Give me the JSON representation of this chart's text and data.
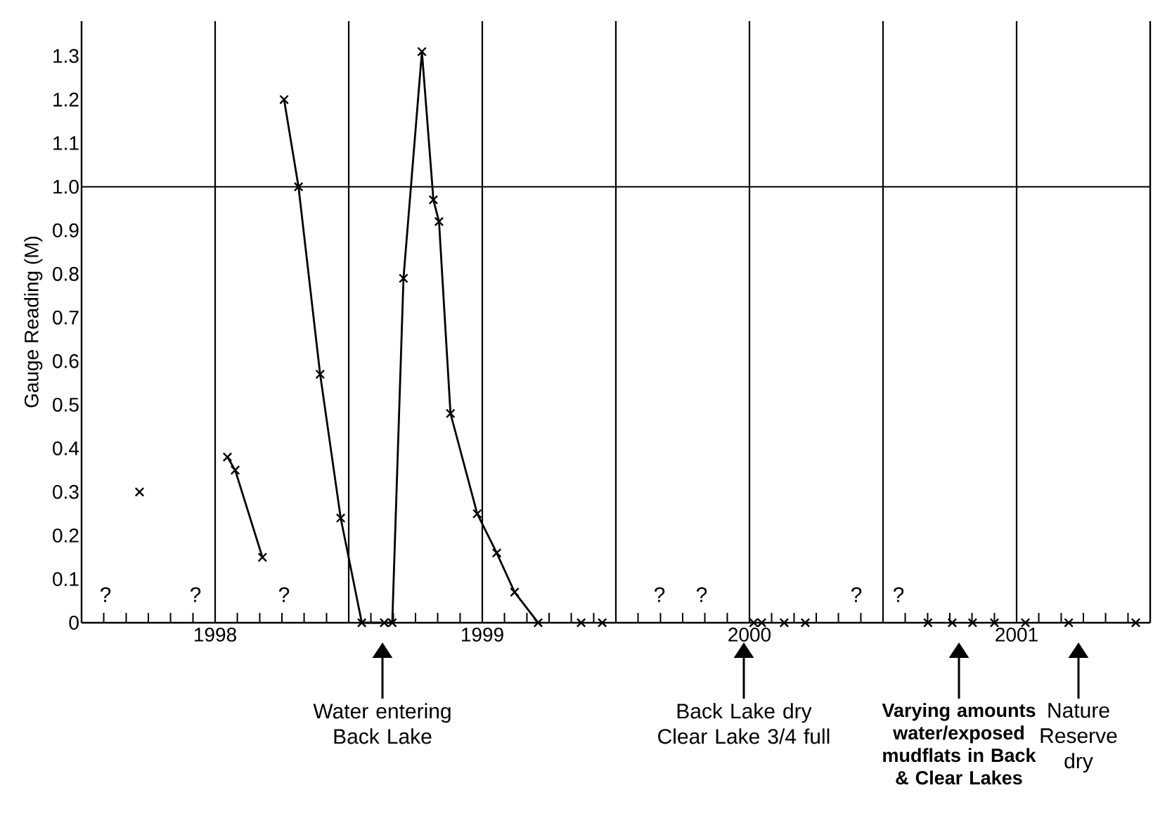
{
  "chart_data": {
    "type": "line",
    "ylabel": "Gauge Reading (M)",
    "xlim": [
      1997.5,
      2001.5
    ],
    "ylim": [
      0,
      1.38
    ],
    "xticks": [
      {
        "value": 1997.583,
        "label": null
      },
      {
        "value": 1997.667,
        "label": null
      },
      {
        "value": 1997.75,
        "label": null
      },
      {
        "value": 1997.833,
        "label": null
      },
      {
        "value": 1997.917,
        "label": null
      },
      1998,
      {
        "value": 1998.083,
        "label": null
      },
      {
        "value": 1998.167,
        "label": null
      },
      {
        "value": 1998.25,
        "label": null
      },
      {
        "value": 1998.333,
        "label": null
      },
      {
        "value": 1998.417,
        "label": null
      },
      {
        "value": 1998.5,
        "label": null
      },
      {
        "value": 1998.583,
        "label": null
      },
      {
        "value": 1998.667,
        "label": null
      },
      {
        "value": 1998.75,
        "label": null
      },
      {
        "value": 1998.833,
        "label": null
      },
      {
        "value": 1998.917,
        "label": null
      },
      1999,
      {
        "value": 1999.083,
        "label": null
      },
      {
        "value": 1999.167,
        "label": null
      },
      {
        "value": 1999.25,
        "label": null
      },
      {
        "value": 1999.333,
        "label": null
      },
      {
        "value": 1999.417,
        "label": null
      },
      {
        "value": 1999.5,
        "label": null
      },
      {
        "value": 1999.583,
        "label": null
      },
      {
        "value": 1999.667,
        "label": null
      },
      {
        "value": 1999.75,
        "label": null
      },
      {
        "value": 1999.833,
        "label": null
      },
      {
        "value": 1999.917,
        "label": null
      },
      2000,
      {
        "value": 2000.083,
        "label": null
      },
      {
        "value": 2000.167,
        "label": null
      },
      {
        "value": 2000.25,
        "label": null
      },
      {
        "value": 2000.333,
        "label": null
      },
      {
        "value": 2000.417,
        "label": null
      },
      {
        "value": 2000.5,
        "label": null
      },
      {
        "value": 2000.583,
        "label": null
      },
      {
        "value": 2000.667,
        "label": null
      },
      {
        "value": 2000.75,
        "label": null
      },
      {
        "value": 2000.833,
        "label": null
      },
      {
        "value": 2000.917,
        "label": null
      },
      2001,
      {
        "value": 2001.083,
        "label": null
      },
      {
        "value": 2001.167,
        "label": null
      },
      {
        "value": 2001.25,
        "label": null
      },
      {
        "value": 2001.333,
        "label": null
      },
      {
        "value": 2001.417,
        "label": null
      }
    ],
    "yticks": [
      0,
      0.1,
      0.2,
      0.3,
      0.4,
      0.5,
      0.6,
      0.7,
      0.8,
      0.9,
      {
        "value": 1,
        "label": "1.0"
      },
      1.1,
      1.2,
      1.3
    ],
    "marker": "cross",
    "series": [
      {
        "color": "#000000",
        "x": [
          1998.046,
          1998.075,
          1998.177
        ],
        "values": [
          0.38,
          0.35,
          0.15
        ]
      },
      {
        "color": "#000000",
        "x": [
          1998.258,
          1998.312,
          1998.393,
          1998.47,
          1998.549,
          1998.633,
          1998.663,
          1998.705,
          1998.774,
          1998.817,
          1998.838,
          1998.881,
          1998.981,
          1999.054,
          1999.121,
          1999.209
        ],
        "values": [
          1.2,
          1.0,
          0.57,
          0.24,
          0,
          0,
          0,
          0.79,
          1.31,
          0.97,
          0.92,
          0.48,
          0.25,
          0.16,
          0.07,
          0
        ]
      },
      {
        "type": "scatter",
        "color": "#000000",
        "x": [
          1997.717,
          1999.37,
          1999.449,
          2000.016,
          2000.046,
          2000.13,
          2000.209,
          2000.668,
          2000.759,
          2000.835,
          2000.917,
          2001.033,
          2001.195,
          2001.446
        ],
        "values": [
          0.3,
          0,
          0,
          0,
          0,
          0,
          0,
          0,
          0,
          0,
          0,
          0,
          0,
          0
        ]
      }
    ],
    "ref_lines": [
      {
        "axis": "x",
        "value": 1998
      },
      {
        "axis": "x",
        "value": 1998.5
      },
      {
        "axis": "x",
        "value": 1999
      },
      {
        "axis": "x",
        "value": 1999.5
      },
      {
        "axis": "x",
        "value": 2000
      },
      {
        "axis": "x",
        "value": 2000.5
      },
      {
        "axis": "x",
        "value": 2001
      },
      {
        "axis": "y",
        "value": 1
      }
    ],
    "annotations": [
      "?",
      "?",
      "?",
      "?",
      "?",
      "?",
      "?",
      "Water entering Back Lake",
      "Back Lake dry Clear Lake 3/4 full",
      "Varying amounts water/exposed mudflats in Back & Clear Lakes",
      "Nature Reserve dry"
    ]
  }
}
